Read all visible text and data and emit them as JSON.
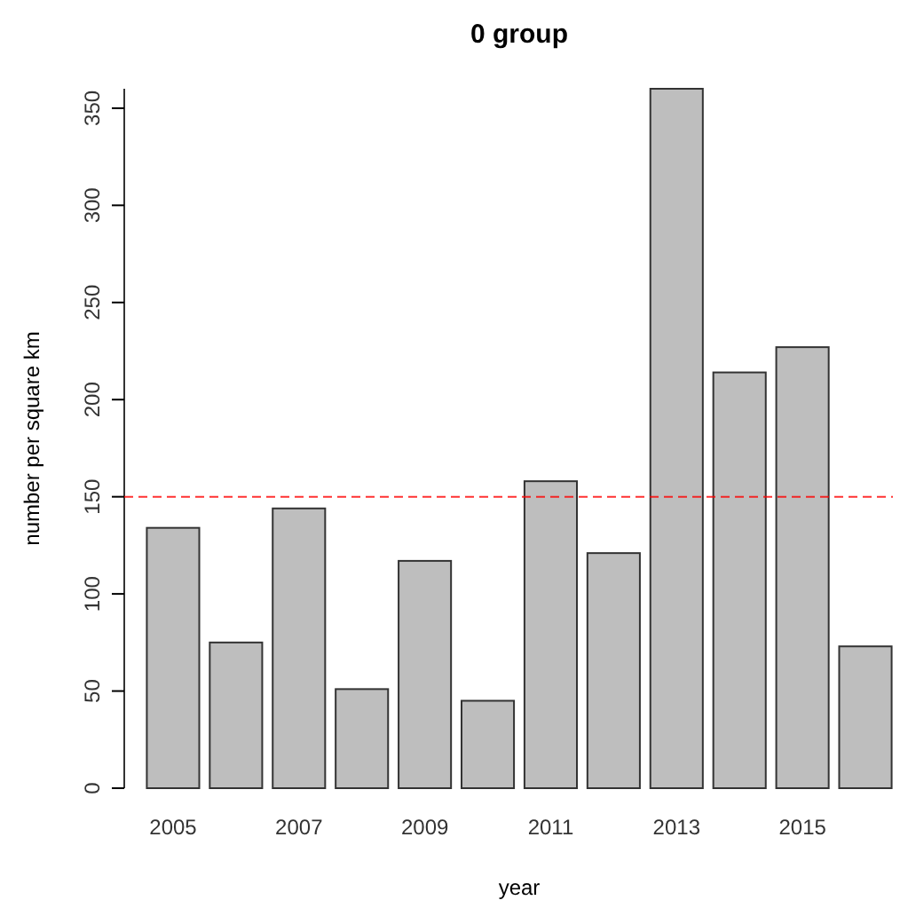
{
  "chart_data": {
    "type": "bar",
    "title": "0 group",
    "xlabel": "year",
    "ylabel": "number per square km",
    "categories": [
      "2005",
      null,
      "2007",
      null,
      "2009",
      null,
      "2011",
      null,
      "2013",
      null,
      "2015",
      null
    ],
    "values": [
      134,
      75,
      144,
      51,
      117,
      45,
      158,
      121,
      360,
      214,
      227,
      73
    ],
    "color": "#bebebe",
    "ylim": [
      0,
      360
    ],
    "yticks": [
      0,
      50,
      100,
      150,
      200,
      250,
      300,
      350
    ],
    "grid": false,
    "ref_lines": [
      {
        "axis": "y",
        "value": 150,
        "color": "#ff0000",
        "line_style": "dashed"
      }
    ]
  }
}
